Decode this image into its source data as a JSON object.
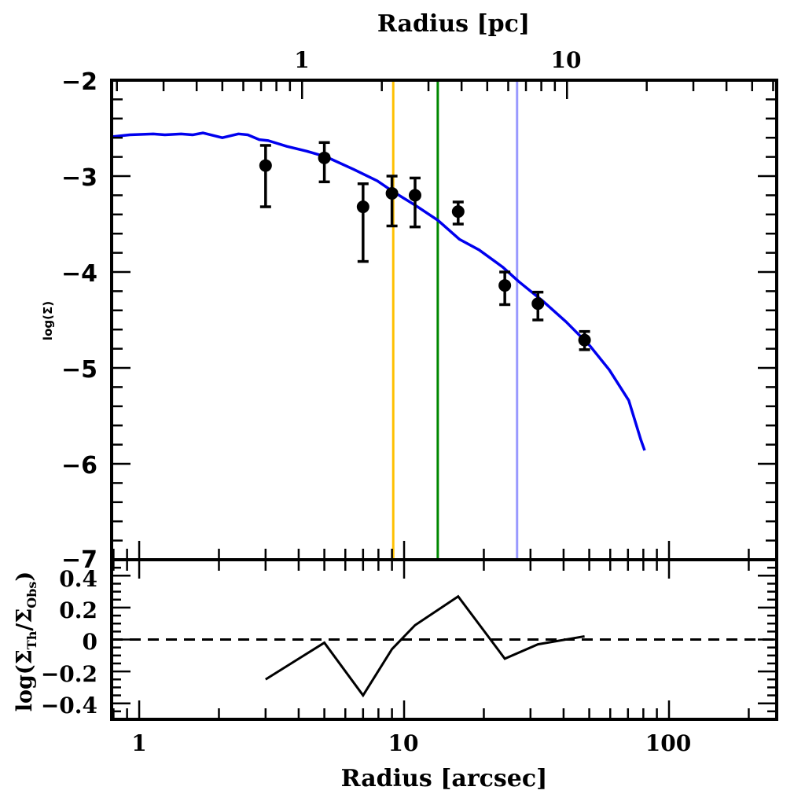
{
  "chart_data": [
    {
      "panel": "main",
      "type": "scatter",
      "xlabel_top": "Radius [pc]",
      "ylabel": "log(Σ)",
      "xscale": "log",
      "xlim": [
        0.787,
        255
      ],
      "ylim": [
        -7,
        -2
      ],
      "yticks": [
        -2,
        -3,
        -4,
        -5,
        -6,
        -7
      ],
      "yticklabels": [
        "−2",
        "−3",
        "−4",
        "−5",
        "−6",
        "−7"
      ],
      "top_axis": {
        "label": "Radius [pc]",
        "arcsec_per_pc": 4.12,
        "ticks": [
          1,
          10
        ],
        "ticklabels": [
          "1",
          "10"
        ]
      },
      "series": [
        {
          "name": "observed",
          "kind": "points-with-errorbars",
          "color": "#000000",
          "x": [
            3,
            5,
            7,
            9,
            11,
            16,
            24,
            32,
            48
          ],
          "y": [
            -2.89,
            -2.81,
            -3.32,
            -3.18,
            -3.2,
            -3.37,
            -4.14,
            -4.33,
            -4.71
          ],
          "y_err_high": [
            -2.68,
            -2.65,
            -3.08,
            -3.0,
            -3.02,
            -3.27,
            -4.0,
            -4.21,
            -4.62
          ],
          "y_err_low": [
            -3.32,
            -3.06,
            -3.89,
            -3.52,
            -3.53,
            -3.5,
            -4.34,
            -4.5,
            -4.81
          ]
        },
        {
          "name": "model",
          "kind": "line",
          "color": "#0000ee",
          "x": [
            0.787,
            0.921,
            1.13,
            1.25,
            1.44,
            1.59,
            1.74,
            2.06,
            2.37,
            2.57,
            2.84,
            3.07,
            3.61,
            4.29,
            5.09,
            6.45,
            7.92,
            9.07,
            11.1,
            13.4,
            16.2,
            19.2,
            23.6,
            27.1,
            33.3,
            40.9,
            50.3,
            59.5,
            70.5,
            78.3,
            80.9
          ],
          "y": [
            -2.59,
            -2.57,
            -2.56,
            -2.57,
            -2.56,
            -2.57,
            -2.55,
            -2.6,
            -2.56,
            -2.57,
            -2.62,
            -2.63,
            -2.69,
            -2.74,
            -2.8,
            -2.93,
            -3.05,
            -3.16,
            -3.31,
            -3.46,
            -3.66,
            -3.77,
            -3.95,
            -4.1,
            -4.3,
            -4.52,
            -4.77,
            -5.02,
            -5.34,
            -5.75,
            -5.86
          ]
        }
      ],
      "vlines": [
        {
          "name": "orange-line",
          "x": 9.1,
          "color": "#ffc000"
        },
        {
          "name": "green-line",
          "x": 13.4,
          "color": "#008800"
        },
        {
          "name": "lightblue-line",
          "x": 26.7,
          "color": "#9999ff"
        }
      ]
    },
    {
      "panel": "residual",
      "type": "line",
      "xlabel": "Radius [arcsec]",
      "ylabel_parts": {
        "prefix": "log(Σ",
        "sub1": "Th",
        "mid": "/Σ",
        "sub2": "Obs",
        "suffix": ")"
      },
      "xscale": "log",
      "xlim": [
        0.787,
        255
      ],
      "xticks": [
        1,
        10,
        100
      ],
      "xticklabels": [
        "1",
        "10",
        "100"
      ],
      "ylim": [
        -0.5,
        0.5
      ],
      "yticks": [
        0.4,
        0.2,
        0,
        -0.2,
        -0.4
      ],
      "yticklabels": [
        "0.4",
        "0.2",
        "0",
        "−0.2",
        "−0.4"
      ],
      "reference_line": {
        "y": 0,
        "style": "dashed"
      },
      "series": [
        {
          "name": "residual",
          "color": "#000000",
          "x": [
            3,
            5,
            7,
            9,
            11,
            16,
            24,
            32,
            48
          ],
          "y": [
            -0.25,
            -0.02,
            -0.35,
            -0.06,
            0.09,
            0.27,
            -0.12,
            -0.03,
            0.02
          ]
        }
      ]
    }
  ]
}
